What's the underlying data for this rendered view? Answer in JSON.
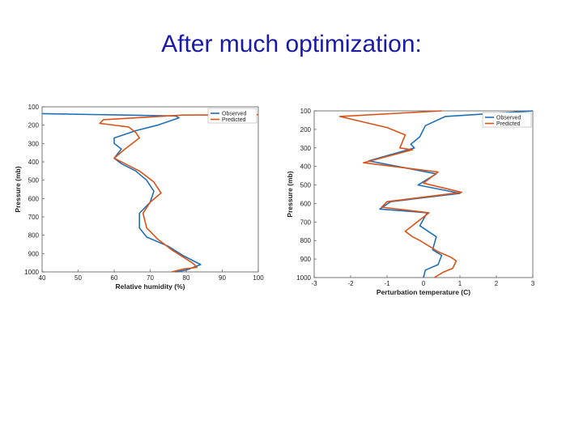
{
  "slide": {
    "title": "After much optimization:"
  },
  "chart_data": [
    {
      "type": "line",
      "xlabel": "Relative humidity (%)",
      "ylabel": "Pressure (mb)",
      "xlim": [
        40,
        100
      ],
      "ylim": [
        100,
        1000
      ],
      "y_inverted": true,
      "xticks": [
        40,
        50,
        60,
        70,
        80,
        90,
        100
      ],
      "yticks": [
        100,
        200,
        300,
        400,
        500,
        600,
        700,
        800,
        900,
        1000
      ],
      "legend_position": "top-right",
      "colors": {
        "Observed": "#1f6fb5",
        "Predicted": "#d95319"
      },
      "series": [
        {
          "name": "Observed",
          "points": [
            [
              40,
              137
            ],
            [
              77,
              150
            ],
            [
              78,
              160
            ],
            [
              72,
              200
            ],
            [
              66,
              230
            ],
            [
              60,
              270
            ],
            [
              60,
              300
            ],
            [
              62,
              330
            ],
            [
              60,
              380
            ],
            [
              62,
              410
            ],
            [
              66,
              450
            ],
            [
              69,
              500
            ],
            [
              71,
              560
            ],
            [
              70,
              620
            ],
            [
              67,
              680
            ],
            [
              67,
              760
            ],
            [
              69,
              810
            ],
            [
              75,
              860
            ],
            [
              79,
              910
            ],
            [
              84,
              960
            ],
            [
              80,
              990
            ],
            [
              77,
              1000
            ]
          ]
        },
        {
          "name": "Predicted",
          "points": [
            [
              100,
              143
            ],
            [
              79,
              145
            ],
            [
              57,
              170
            ],
            [
              56,
              190
            ],
            [
              64,
              210
            ],
            [
              66,
              240
            ],
            [
              67,
              270
            ],
            [
              63,
              330
            ],
            [
              60,
              380
            ],
            [
              63,
              410
            ],
            [
              67,
              450
            ],
            [
              71,
              510
            ],
            [
              73,
              570
            ],
            [
              70,
              620
            ],
            [
              68,
              680
            ],
            [
              69,
              760
            ],
            [
              72,
              820
            ],
            [
              76,
              880
            ],
            [
              80,
              930
            ],
            [
              82,
              955
            ],
            [
              83,
              975
            ],
            [
              79,
              985
            ],
            [
              76,
              1000
            ]
          ]
        }
      ]
    },
    {
      "type": "line",
      "xlabel": "Perturbation temperature (C)",
      "ylabel": "Pressure (mb)",
      "xlim": [
        -3,
        3
      ],
      "ylim": [
        100,
        1000
      ],
      "y_inverted": true,
      "xticks": [
        -3,
        -2,
        -1,
        0,
        1,
        2,
        3
      ],
      "yticks": [
        100,
        200,
        300,
        400,
        500,
        600,
        700,
        800,
        900,
        1000
      ],
      "legend_position": "top-right",
      "colors": {
        "Observed": "#1f6fb5",
        "Predicted": "#d95319"
      },
      "series": [
        {
          "name": "Observed",
          "points": [
            [
              3,
              100
            ],
            [
              0.6,
              130
            ],
            [
              0.05,
              180
            ],
            [
              -0.1,
              240
            ],
            [
              -0.35,
              280
            ],
            [
              -0.25,
              300
            ],
            [
              -1.5,
              370
            ],
            [
              0.35,
              440
            ],
            [
              -0.15,
              500
            ],
            [
              1.0,
              545
            ],
            [
              -0.9,
              590
            ],
            [
              -1.2,
              630
            ],
            [
              0.1,
              650
            ],
            [
              -0.1,
              720
            ],
            [
              0.35,
              780
            ],
            [
              0.25,
              850
            ],
            [
              0.5,
              880
            ],
            [
              0.4,
              930
            ],
            [
              0.05,
              960
            ],
            [
              0,
              1000
            ]
          ]
        },
        {
          "name": "Predicted",
          "points": [
            [
              0.5,
              100
            ],
            [
              -2.3,
              130
            ],
            [
              -1.0,
              190
            ],
            [
              -0.5,
              230
            ],
            [
              -0.65,
              300
            ],
            [
              -0.3,
              310
            ],
            [
              -1.65,
              380
            ],
            [
              0.4,
              430
            ],
            [
              0,
              490
            ],
            [
              1.05,
              540
            ],
            [
              -1.0,
              590
            ],
            [
              -1.15,
              620
            ],
            [
              0.15,
              650
            ],
            [
              -0.5,
              750
            ],
            [
              -0.3,
              780
            ],
            [
              -0.1,
              800
            ],
            [
              0.4,
              860
            ],
            [
              0.75,
              890
            ],
            [
              0.9,
              910
            ],
            [
              0.8,
              950
            ],
            [
              0.55,
              970
            ],
            [
              0.3,
              1000
            ]
          ]
        }
      ]
    }
  ]
}
